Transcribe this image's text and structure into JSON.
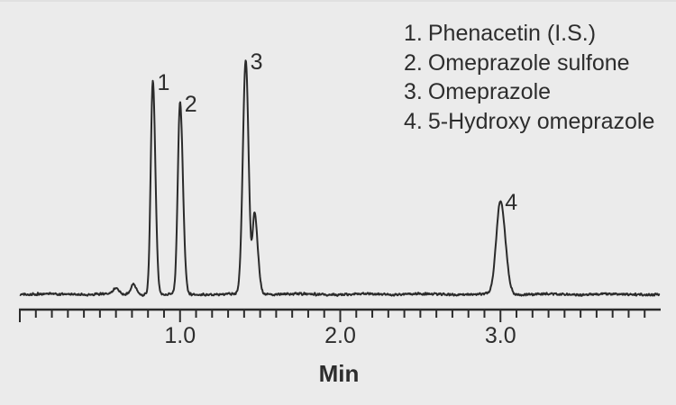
{
  "chart_data": {
    "type": "line",
    "subtype": "chromatogram",
    "title": "",
    "xlabel": "Min",
    "ylabel": "",
    "grid": false,
    "legend_position": "top-right",
    "x_axis": {
      "min": 0.0,
      "max": 4.0,
      "minor_tick_interval": 0.1,
      "major_tick_interval": 1.0,
      "labeled_ticks": [
        {
          "value": 1.0,
          "label": "1.0"
        },
        {
          "value": 2.0,
          "label": "2.0"
        },
        {
          "value": 3.0,
          "label": "3.0"
        }
      ]
    },
    "legend": [
      {
        "number": "1.",
        "name": "Phenacetin (I.S.)"
      },
      {
        "number": "2.",
        "name": "Omeprazole sulfone"
      },
      {
        "number": "3.",
        "name": "Omeprazole"
      },
      {
        "number": "4.",
        "name": "5-Hydroxy omeprazole"
      }
    ],
    "peaks": [
      {
        "label": "1",
        "compound": "Phenacetin (I.S.)",
        "retention_min": 0.83,
        "rel_height": 0.91,
        "sigma_min": 0.013,
        "sigma_right_min": 0.016
      },
      {
        "label": "2",
        "compound": "Omeprazole sulfone",
        "retention_min": 1.0,
        "rel_height": 0.82,
        "sigma_min": 0.014,
        "sigma_right_min": 0.018
      },
      {
        "label": "3",
        "compound": "Omeprazole",
        "retention_min": 1.41,
        "rel_height": 1.0,
        "sigma_min": 0.018,
        "sigma_right_min": 0.018
      },
      {
        "label": "",
        "compound": "unresolved shoulder peak",
        "retention_min": 1.465,
        "rel_height": 0.34,
        "sigma_min": 0.012,
        "sigma_right_min": 0.02
      },
      {
        "label": "4",
        "compound": "5-Hydroxy omeprazole",
        "retention_min": 3.0,
        "rel_height": 0.4,
        "sigma_min": 0.026,
        "sigma_right_min": 0.03
      }
    ],
    "baseline_features": [
      {
        "retention_min": 0.6,
        "rel_height": 0.022,
        "sigma_min": 0.02
      },
      {
        "retention_min": 0.71,
        "rel_height": 0.045,
        "sigma_min": 0.016
      }
    ],
    "noise_rel_amplitude": 0.006
  },
  "colors": {
    "background": "#ebebeb",
    "trace": "#2b2b2b",
    "axis": "#2b2b2b",
    "text": "#2d2d2d"
  }
}
